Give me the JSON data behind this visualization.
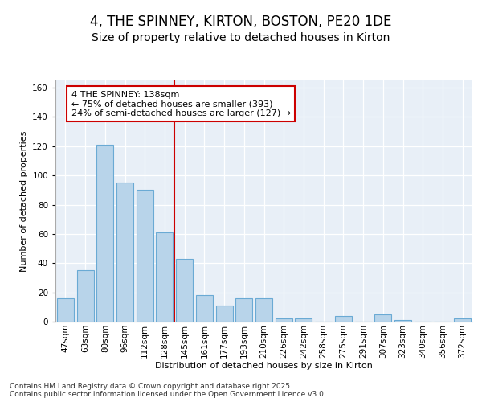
{
  "title1": "4, THE SPINNEY, KIRTON, BOSTON, PE20 1DE",
  "title2": "Size of property relative to detached houses in Kirton",
  "xlabel": "Distribution of detached houses by size in Kirton",
  "ylabel": "Number of detached properties",
  "categories": [
    "47sqm",
    "63sqm",
    "80sqm",
    "96sqm",
    "112sqm",
    "128sqm",
    "145sqm",
    "161sqm",
    "177sqm",
    "193sqm",
    "210sqm",
    "226sqm",
    "242sqm",
    "258sqm",
    "275sqm",
    "291sqm",
    "307sqm",
    "323sqm",
    "340sqm",
    "356sqm",
    "372sqm"
  ],
  "values": [
    16,
    35,
    121,
    95,
    90,
    61,
    43,
    18,
    11,
    16,
    16,
    2,
    2,
    0,
    4,
    0,
    5,
    1,
    0,
    0,
    2
  ],
  "bar_color": "#b8d4ea",
  "bar_edge_color": "#6aaad4",
  "vline_x": 5.5,
  "vline_color": "#cc0000",
  "annotation_text": "4 THE SPINNEY: 138sqm\n← 75% of detached houses are smaller (393)\n24% of semi-detached houses are larger (127) →",
  "annotation_box_color": "#ffffff",
  "annotation_box_edge": "#cc0000",
  "ylim": [
    0,
    165
  ],
  "yticks": [
    0,
    20,
    40,
    60,
    80,
    100,
    120,
    140,
    160
  ],
  "background_color": "#e8eff7",
  "grid_color": "#ffffff",
  "footer": "Contains HM Land Registry data © Crown copyright and database right 2025.\nContains public sector information licensed under the Open Government Licence v3.0.",
  "title1_fontsize": 12,
  "title2_fontsize": 10,
  "annot_fontsize": 8,
  "axis_fontsize": 8,
  "tick_fontsize": 7.5,
  "footer_fontsize": 6.5
}
